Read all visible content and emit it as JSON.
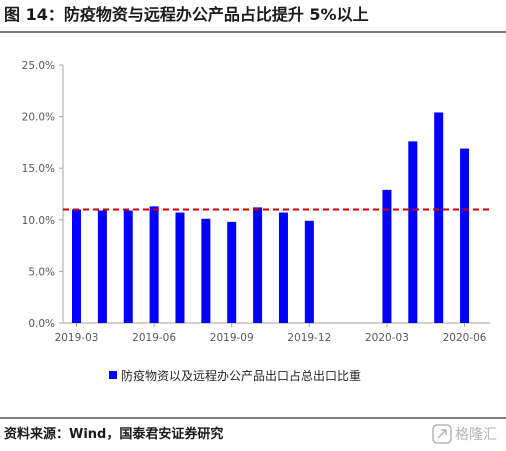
{
  "title": "图 14：防疫物资与远程办公产品占比提升 5%以上",
  "source": "资料来源：Wind，国泰君安证券研究",
  "watermark": "格隆汇",
  "watermark_icon": "glh-logo-icon",
  "colors": {
    "bar": "#0000ff",
    "reference_line": "#cc0000",
    "axis": "#a6a6a6",
    "rule": "#333333"
  },
  "chart_data": {
    "type": "bar",
    "title": "图 14：防疫物资与远程办公产品占比提升 5%以上",
    "xlabel": "",
    "ylabel": "",
    "categories": [
      "2019-03",
      "2019-04",
      "2019-05",
      "2019-06",
      "2019-07",
      "2019-08",
      "2019-09",
      "2019-10",
      "2019-11",
      "2019-12",
      "2020-01",
      "2020-02",
      "2020-03",
      "2020-04",
      "2020-05",
      "2020-06"
    ],
    "series": [
      {
        "name": "防疫物资以及远程办公产品出口占总出口比重",
        "values": [
          11.0,
          10.9,
          10.9,
          11.3,
          10.7,
          10.1,
          9.8,
          11.2,
          10.7,
          9.9,
          null,
          null,
          12.9,
          17.6,
          20.4,
          16.9
        ]
      }
    ],
    "xticks": [
      "2019-03",
      "2019-06",
      "2019-09",
      "2019-12",
      "2020-03",
      "2020-06"
    ],
    "yticks": [
      "0.0%",
      "5.0%",
      "10.0%",
      "15.0%",
      "20.0%",
      "25.0%"
    ],
    "ylim": [
      0,
      25
    ],
    "reference_line": {
      "value": 11.0,
      "style": "dashed"
    },
    "grid": false,
    "legend_position": "bottom"
  }
}
